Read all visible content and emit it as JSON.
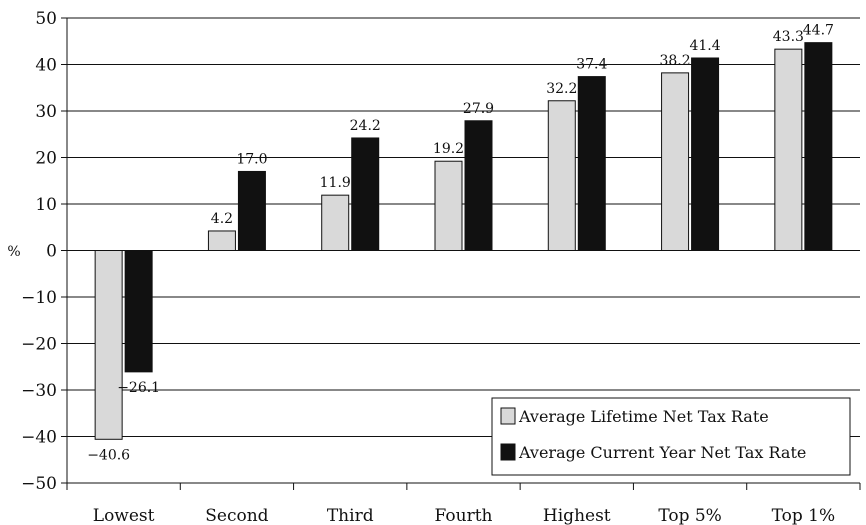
{
  "chart_data": {
    "type": "bar",
    "categories": [
      "Lowest",
      "Second",
      "Third",
      "Fourth",
      "Highest",
      "Top 5%",
      "Top 1%"
    ],
    "series": [
      {
        "name": "Average Lifetime Net Tax Rate",
        "color": "#d9d9d9",
        "values": [
          -40.6,
          4.2,
          11.9,
          19.2,
          32.2,
          38.2,
          43.3
        ],
        "labels": [
          "−40.6",
          "4.2",
          "11.9",
          "19.2",
          "32.2",
          "38.2",
          "43.3"
        ]
      },
      {
        "name": "Average Current Year Net Tax Rate",
        "color": "#111111",
        "values": [
          -26.1,
          17.0,
          24.2,
          27.9,
          37.4,
          41.4,
          44.7
        ],
        "labels": [
          "−26.1",
          "17.0",
          "24.2",
          "27.9",
          "37.4",
          "41.4",
          "44.7"
        ]
      }
    ],
    "ylabel": "%",
    "ylim": [
      -50,
      50
    ],
    "yticks": [
      50,
      40,
      30,
      20,
      10,
      0,
      -10,
      -20,
      -30,
      -40,
      -50
    ],
    "ytick_labels": [
      "50",
      "40",
      "30",
      "20",
      "10",
      "0",
      "−10",
      "−20",
      "−30",
      "−40",
      "−50"
    ],
    "grid": true,
    "legend_position": "bottom-right"
  }
}
